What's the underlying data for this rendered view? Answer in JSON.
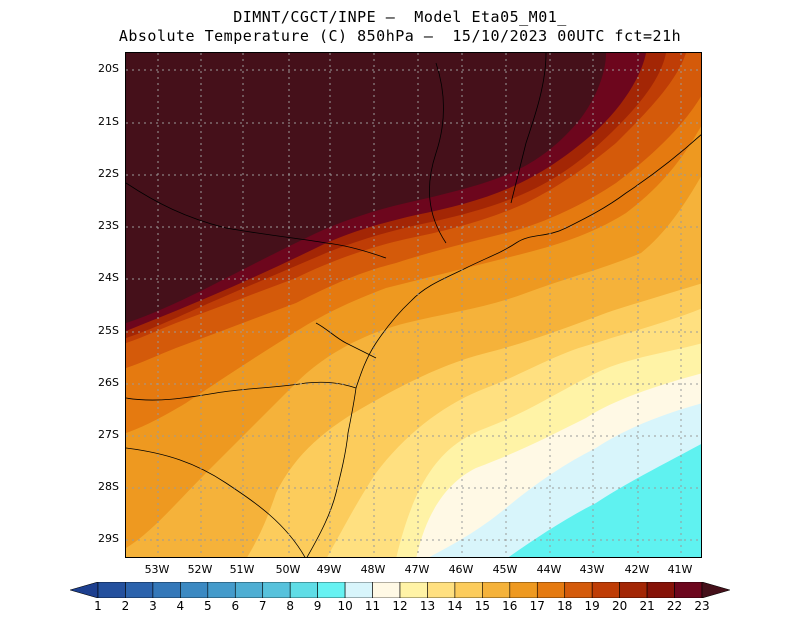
{
  "title": {
    "line1": "DIMNT/CGCT/INPE –  Model Eta05_M01_",
    "line2": "Absolute Temperature (C) 850hPa –  15/10/2023 00UTC fct=21h"
  },
  "map": {
    "lat_labels": [
      "20S",
      "21S",
      "22S",
      "23S",
      "24S",
      "25S",
      "26S",
      "27S",
      "28S",
      "29S"
    ],
    "lon_labels": [
      "53W",
      "52W",
      "51W",
      "50W",
      "49W",
      "48W",
      "47W",
      "46W",
      "45W",
      "44W",
      "43W",
      "42W",
      "41W"
    ]
  },
  "colorbar": {
    "labels": [
      "1",
      "2",
      "3",
      "4",
      "5",
      "6",
      "7",
      "8",
      "9",
      "10",
      "11",
      "12",
      "13",
      "14",
      "15",
      "16",
      "17",
      "18",
      "19",
      "20",
      "21",
      "22",
      "23"
    ],
    "colors": [
      "#1d3f8f",
      "#23509e",
      "#2b63ad",
      "#3478b9",
      "#3b89c2",
      "#449bcb",
      "#4eaed3",
      "#57c2dc",
      "#5fdde6",
      "#66f2f2",
      "#d8f5fb",
      "#fff9e5",
      "#fff3a6",
      "#ffe080",
      "#fccc5c",
      "#f5b23a",
      "#ee9920",
      "#e57a10",
      "#d45a0a",
      "#bf3d06",
      "#a32605",
      "#861208",
      "#6d061d",
      "#45101a"
    ]
  }
}
